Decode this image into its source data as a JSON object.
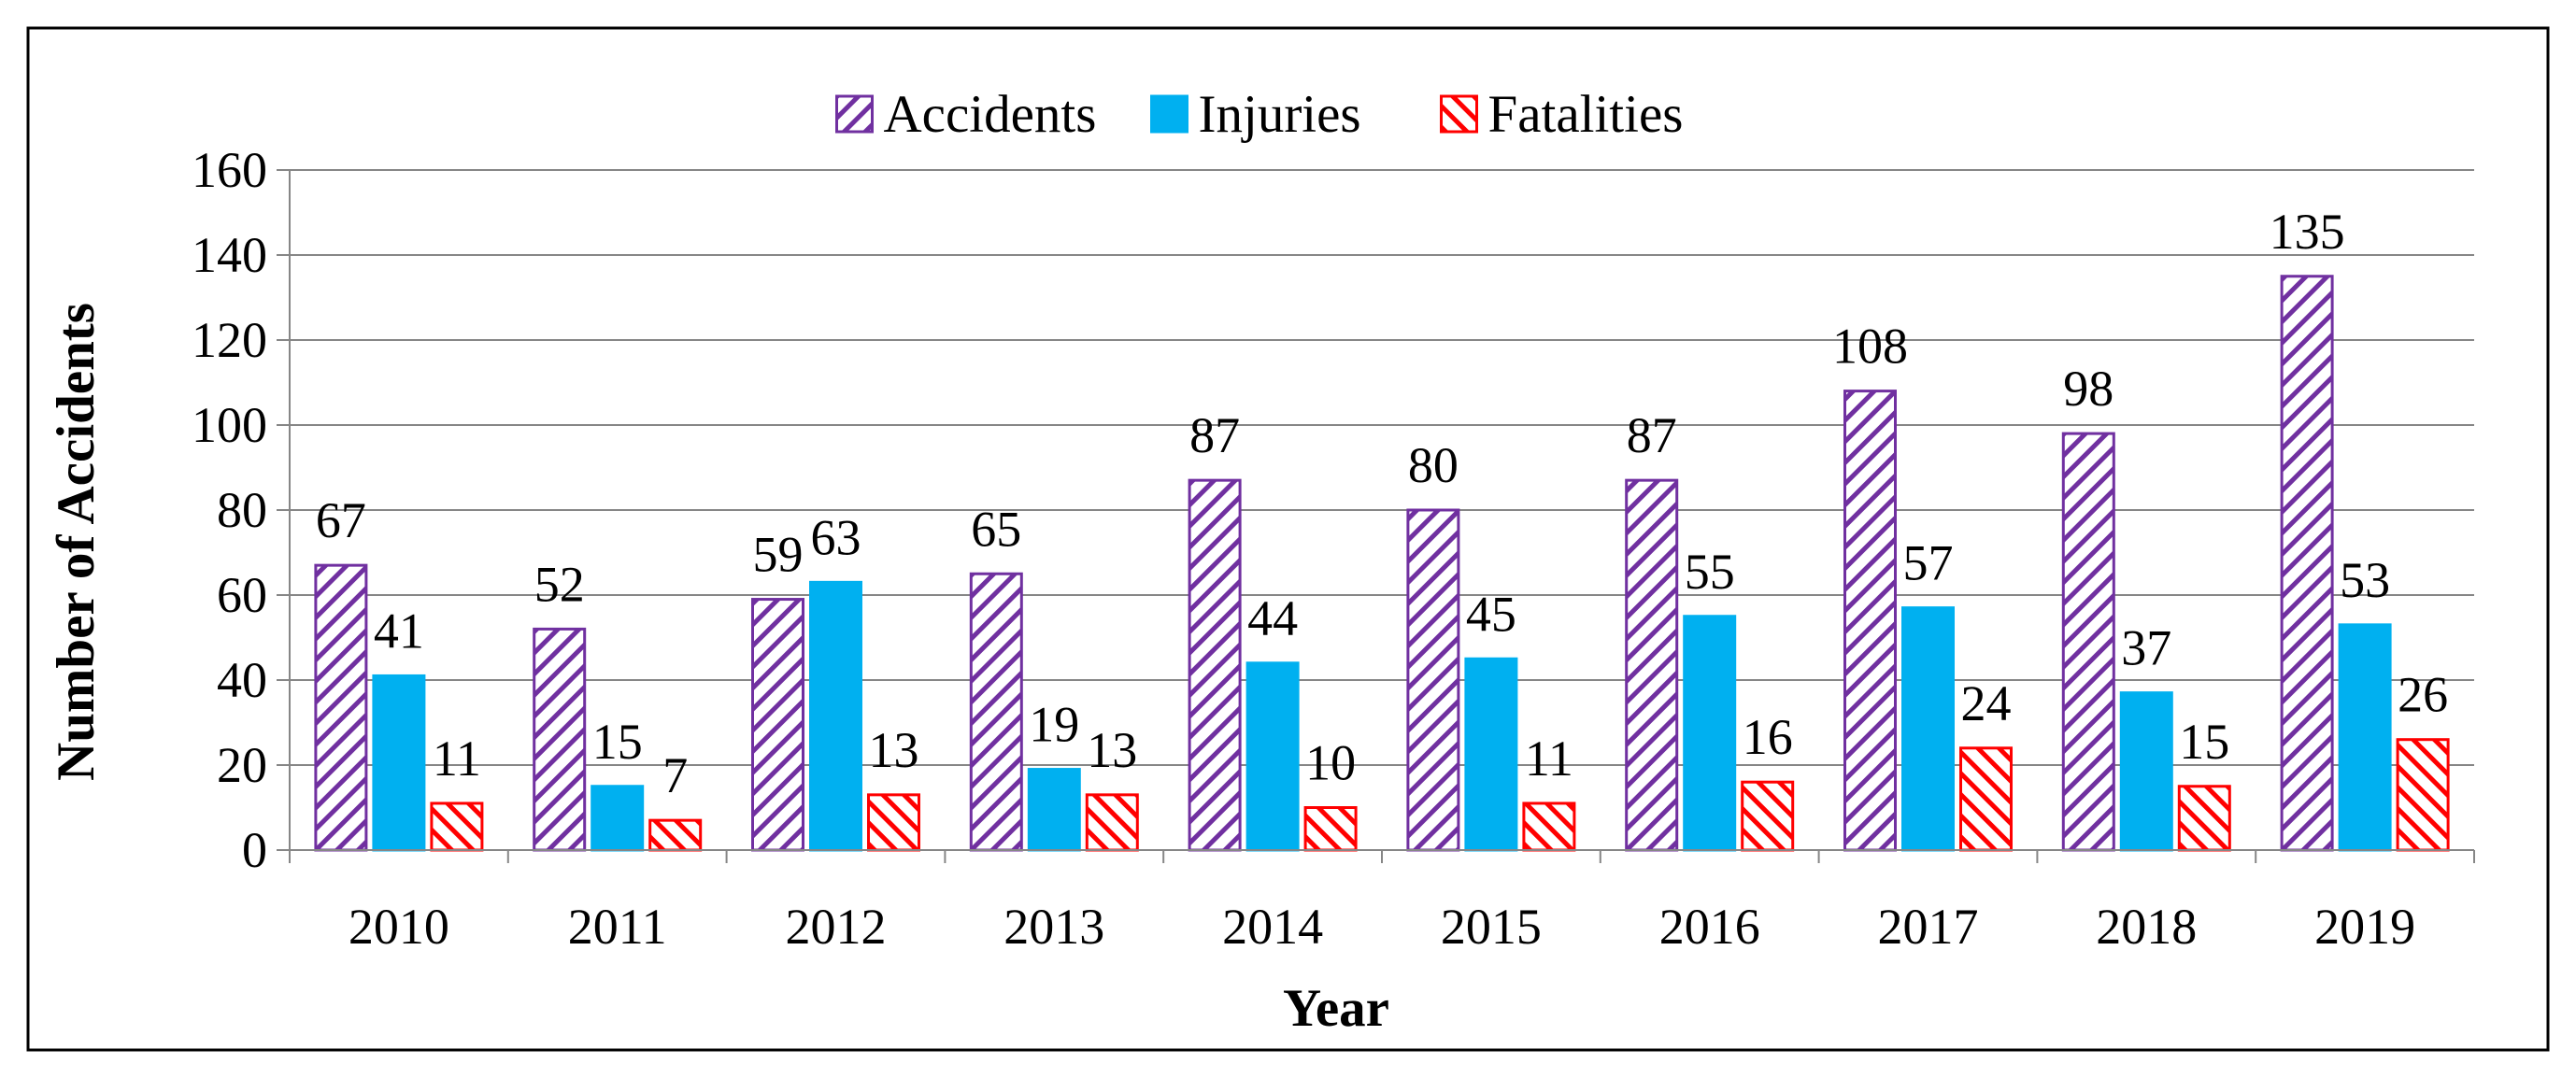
{
  "chart_data": {
    "type": "bar",
    "title": "",
    "xlabel": "Year",
    "ylabel": "Number of Accidents",
    "ylim": [
      0,
      160
    ],
    "yticks": [
      0,
      20,
      40,
      60,
      80,
      100,
      120,
      140,
      160
    ],
    "grid": true,
    "legend_position": "top-center",
    "categories": [
      "2010",
      "2011",
      "2012",
      "2013",
      "2014",
      "2015",
      "2016",
      "2017",
      "2018",
      "2019"
    ],
    "series": [
      {
        "name": "Accidents",
        "values": [
          67,
          52,
          59,
          65,
          87,
          80,
          87,
          108,
          98,
          135
        ],
        "color": "#7030A0",
        "pattern": "diagonal-up"
      },
      {
        "name": "Injuries",
        "values": [
          41,
          15,
          63,
          19,
          44,
          45,
          55,
          57,
          37,
          53
        ],
        "color": "#00B0F0",
        "pattern": "solid"
      },
      {
        "name": "Fatalities",
        "values": [
          11,
          7,
          13,
          13,
          10,
          11,
          16,
          24,
          15,
          26
        ],
        "color": "#FF0000",
        "pattern": "diagonal-down"
      }
    ]
  }
}
